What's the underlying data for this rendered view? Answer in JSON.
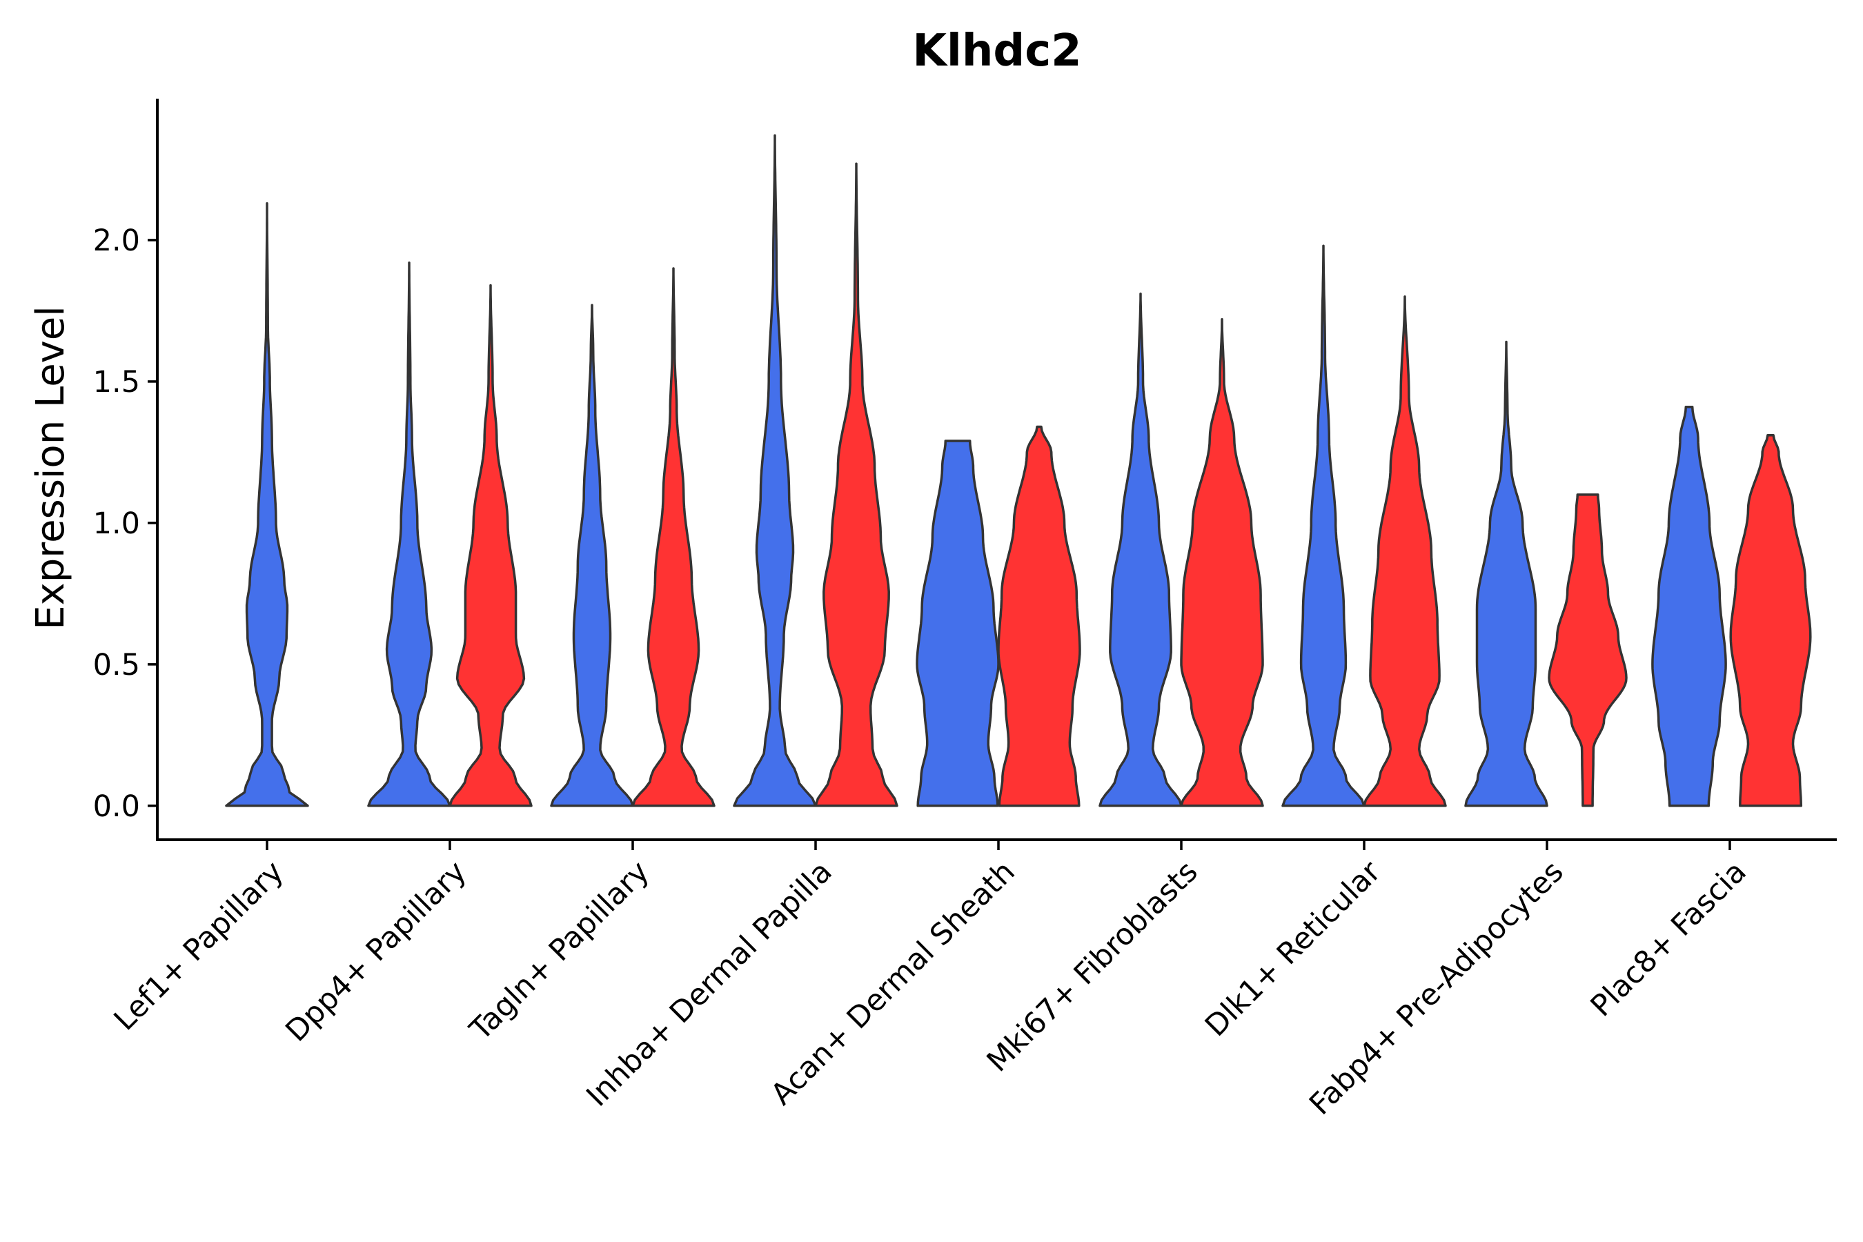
{
  "chart_data": {
    "type": "violin",
    "title": "Klhdc2",
    "xlabel": "",
    "ylabel": "Expression Level",
    "ylim": [
      -0.12,
      2.5
    ],
    "yticks": [
      0.0,
      0.5,
      1.0,
      1.5,
      2.0
    ],
    "ytick_labels": [
      "0.0",
      "0.5",
      "1.0",
      "1.5",
      "2.0"
    ],
    "grid": false,
    "legend": "none",
    "series_colors": {
      "group1": "#4470EB",
      "group2": "#FF3333"
    },
    "categories": [
      "Lef1+ Papillary",
      "Dpp4+ Papillary",
      "Tagln+ Papillary",
      "Inhba+ Dermal Papilla",
      "Acan+ Dermal Sheath",
      "Mki67+ Fibroblasts",
      "Dlk1+ Reticular",
      "Fabp4+ Pre-Adipocytes",
      "Plac8+ Fascia"
    ],
    "violins": [
      {
        "category": "Lef1+ Papillary",
        "group": "group1",
        "min": 0.0,
        "max": 2.13,
        "profile": [
          [
            0.0,
            1.0
          ],
          [
            0.05,
            0.55
          ],
          [
            0.12,
            0.4
          ],
          [
            0.2,
            0.12
          ],
          [
            0.3,
            0.12
          ],
          [
            0.45,
            0.3
          ],
          [
            0.6,
            0.48
          ],
          [
            0.7,
            0.5
          ],
          [
            0.8,
            0.42
          ],
          [
            1.0,
            0.22
          ],
          [
            1.3,
            0.12
          ],
          [
            1.5,
            0.07
          ],
          [
            1.7,
            0.02
          ],
          [
            2.13,
            0.0
          ]
        ]
      },
      {
        "category": "Dpp4+ Papillary",
        "group": "group1",
        "min": 0.0,
        "max": 1.92,
        "profile": [
          [
            0.0,
            1.0
          ],
          [
            0.1,
            0.5
          ],
          [
            0.2,
            0.15
          ],
          [
            0.3,
            0.2
          ],
          [
            0.42,
            0.42
          ],
          [
            0.55,
            0.55
          ],
          [
            0.7,
            0.42
          ],
          [
            1.0,
            0.2
          ],
          [
            1.3,
            0.07
          ],
          [
            1.5,
            0.03
          ],
          [
            1.92,
            0.0
          ]
        ]
      },
      {
        "category": "Dpp4+ Papillary",
        "group": "group2",
        "min": 0.0,
        "max": 1.84,
        "profile": [
          [
            0.0,
            1.0
          ],
          [
            0.1,
            0.6
          ],
          [
            0.2,
            0.22
          ],
          [
            0.32,
            0.3
          ],
          [
            0.45,
            0.82
          ],
          [
            0.6,
            0.62
          ],
          [
            0.75,
            0.62
          ],
          [
            1.0,
            0.42
          ],
          [
            1.3,
            0.15
          ],
          [
            1.5,
            0.05
          ],
          [
            1.84,
            0.0
          ]
        ]
      },
      {
        "category": "Tagln+ Papillary",
        "group": "group1",
        "min": 0.0,
        "max": 1.77,
        "profile": [
          [
            0.0,
            1.0
          ],
          [
            0.1,
            0.55
          ],
          [
            0.2,
            0.2
          ],
          [
            0.35,
            0.35
          ],
          [
            0.6,
            0.45
          ],
          [
            0.85,
            0.35
          ],
          [
            1.1,
            0.2
          ],
          [
            1.4,
            0.08
          ],
          [
            1.6,
            0.03
          ],
          [
            1.77,
            0.0
          ]
        ]
      },
      {
        "category": "Tagln+ Papillary",
        "group": "group2",
        "min": 0.0,
        "max": 1.9,
        "profile": [
          [
            0.0,
            1.0
          ],
          [
            0.1,
            0.55
          ],
          [
            0.2,
            0.2
          ],
          [
            0.35,
            0.4
          ],
          [
            0.55,
            0.62
          ],
          [
            0.8,
            0.45
          ],
          [
            1.1,
            0.25
          ],
          [
            1.4,
            0.08
          ],
          [
            1.6,
            0.03
          ],
          [
            1.9,
            0.0
          ]
        ]
      },
      {
        "category": "Inhba+ Dermal Papilla",
        "group": "group1",
        "min": 0.0,
        "max": 2.37,
        "profile": [
          [
            0.0,
            1.0
          ],
          [
            0.1,
            0.55
          ],
          [
            0.2,
            0.25
          ],
          [
            0.35,
            0.12
          ],
          [
            0.6,
            0.22
          ],
          [
            0.8,
            0.4
          ],
          [
            0.9,
            0.45
          ],
          [
            1.1,
            0.35
          ],
          [
            1.5,
            0.15
          ],
          [
            1.9,
            0.04
          ],
          [
            2.37,
            0.0
          ]
        ]
      },
      {
        "category": "Inhba+ Dermal Papilla",
        "group": "group2",
        "min": 0.0,
        "max": 2.27,
        "profile": [
          [
            0.0,
            1.0
          ],
          [
            0.1,
            0.65
          ],
          [
            0.2,
            0.4
          ],
          [
            0.35,
            0.35
          ],
          [
            0.55,
            0.7
          ],
          [
            0.75,
            0.8
          ],
          [
            0.95,
            0.6
          ],
          [
            1.2,
            0.45
          ],
          [
            1.5,
            0.15
          ],
          [
            1.8,
            0.04
          ],
          [
            2.27,
            0.0
          ]
        ]
      },
      {
        "category": "Acan+ Dermal Sheath",
        "group": "group1",
        "min": 0.0,
        "max": 1.29,
        "profile": [
          [
            0.0,
            0.98
          ],
          [
            0.1,
            0.9
          ],
          [
            0.22,
            0.75
          ],
          [
            0.35,
            0.82
          ],
          [
            0.5,
            1.0
          ],
          [
            0.7,
            0.88
          ],
          [
            0.95,
            0.62
          ],
          [
            1.2,
            0.38
          ],
          [
            1.29,
            0.3
          ]
        ]
      },
      {
        "category": "Acan+ Dermal Sheath",
        "group": "group2",
        "min": 0.0,
        "max": 1.34,
        "profile": [
          [
            0.0,
            0.98
          ],
          [
            0.1,
            0.9
          ],
          [
            0.22,
            0.75
          ],
          [
            0.35,
            0.82
          ],
          [
            0.55,
            1.0
          ],
          [
            0.75,
            0.92
          ],
          [
            1.0,
            0.62
          ],
          [
            1.25,
            0.3
          ],
          [
            1.34,
            0.05
          ]
        ]
      },
      {
        "category": "Mki67+ Fibroblasts",
        "group": "group1",
        "min": 0.0,
        "max": 1.81,
        "profile": [
          [
            0.0,
            1.0
          ],
          [
            0.1,
            0.6
          ],
          [
            0.2,
            0.3
          ],
          [
            0.35,
            0.45
          ],
          [
            0.55,
            0.75
          ],
          [
            0.75,
            0.7
          ],
          [
            1.0,
            0.45
          ],
          [
            1.3,
            0.2
          ],
          [
            1.5,
            0.06
          ],
          [
            1.81,
            0.0
          ]
        ]
      },
      {
        "category": "Mki67+ Fibroblasts",
        "group": "group2",
        "min": 0.0,
        "max": 1.72,
        "profile": [
          [
            0.0,
            1.0
          ],
          [
            0.1,
            0.6
          ],
          [
            0.2,
            0.45
          ],
          [
            0.35,
            0.75
          ],
          [
            0.5,
            1.0
          ],
          [
            0.75,
            0.95
          ],
          [
            1.0,
            0.72
          ],
          [
            1.3,
            0.3
          ],
          [
            1.5,
            0.05
          ],
          [
            1.72,
            0.0
          ]
        ]
      },
      {
        "category": "Dlk1+ Reticular",
        "group": "group1",
        "min": 0.0,
        "max": 1.98,
        "profile": [
          [
            0.0,
            1.0
          ],
          [
            0.1,
            0.55
          ],
          [
            0.2,
            0.25
          ],
          [
            0.35,
            0.4
          ],
          [
            0.5,
            0.55
          ],
          [
            0.7,
            0.5
          ],
          [
            1.0,
            0.3
          ],
          [
            1.3,
            0.14
          ],
          [
            1.6,
            0.04
          ],
          [
            1.98,
            0.0
          ]
        ]
      },
      {
        "category": "Dlk1+ Reticular",
        "group": "group2",
        "min": 0.0,
        "max": 1.8,
        "profile": [
          [
            0.0,
            1.0
          ],
          [
            0.1,
            0.62
          ],
          [
            0.2,
            0.35
          ],
          [
            0.32,
            0.55
          ],
          [
            0.45,
            0.85
          ],
          [
            0.65,
            0.8
          ],
          [
            0.9,
            0.65
          ],
          [
            1.2,
            0.35
          ],
          [
            1.45,
            0.1
          ],
          [
            1.8,
            0.0
          ]
        ]
      },
      {
        "category": "Fabp4+ Pre-Adipocytes",
        "group": "group1",
        "min": 0.0,
        "max": 1.64,
        "profile": [
          [
            0.0,
            1.0
          ],
          [
            0.1,
            0.7
          ],
          [
            0.2,
            0.45
          ],
          [
            0.35,
            0.65
          ],
          [
            0.5,
            0.72
          ],
          [
            0.7,
            0.72
          ],
          [
            1.0,
            0.4
          ],
          [
            1.2,
            0.12
          ],
          [
            1.4,
            0.03
          ],
          [
            1.64,
            0.0
          ]
        ]
      },
      {
        "category": "Fabp4+ Pre-Adipocytes",
        "group": "group2",
        "min": 0.0,
        "max": 1.1,
        "profile": [
          [
            0.0,
            0.12
          ],
          [
            0.2,
            0.14
          ],
          [
            0.3,
            0.4
          ],
          [
            0.45,
            0.95
          ],
          [
            0.6,
            0.75
          ],
          [
            0.75,
            0.5
          ],
          [
            0.9,
            0.35
          ],
          [
            1.05,
            0.28
          ],
          [
            1.1,
            0.25
          ]
        ]
      },
      {
        "category": "Plac8+ Fascia",
        "group": "group1",
        "min": 0.0,
        "max": 1.41,
        "profile": [
          [
            0.0,
            0.48
          ],
          [
            0.15,
            0.58
          ],
          [
            0.3,
            0.75
          ],
          [
            0.5,
            0.9
          ],
          [
            0.75,
            0.75
          ],
          [
            1.0,
            0.5
          ],
          [
            1.3,
            0.22
          ],
          [
            1.41,
            0.08
          ]
        ]
      },
      {
        "category": "Plac8+ Fascia",
        "group": "group2",
        "min": 0.0,
        "max": 1.31,
        "profile": [
          [
            0.0,
            0.75
          ],
          [
            0.1,
            0.72
          ],
          [
            0.22,
            0.55
          ],
          [
            0.35,
            0.75
          ],
          [
            0.6,
            0.98
          ],
          [
            0.8,
            0.85
          ],
          [
            1.05,
            0.55
          ],
          [
            1.25,
            0.2
          ],
          [
            1.31,
            0.07
          ]
        ]
      }
    ]
  }
}
